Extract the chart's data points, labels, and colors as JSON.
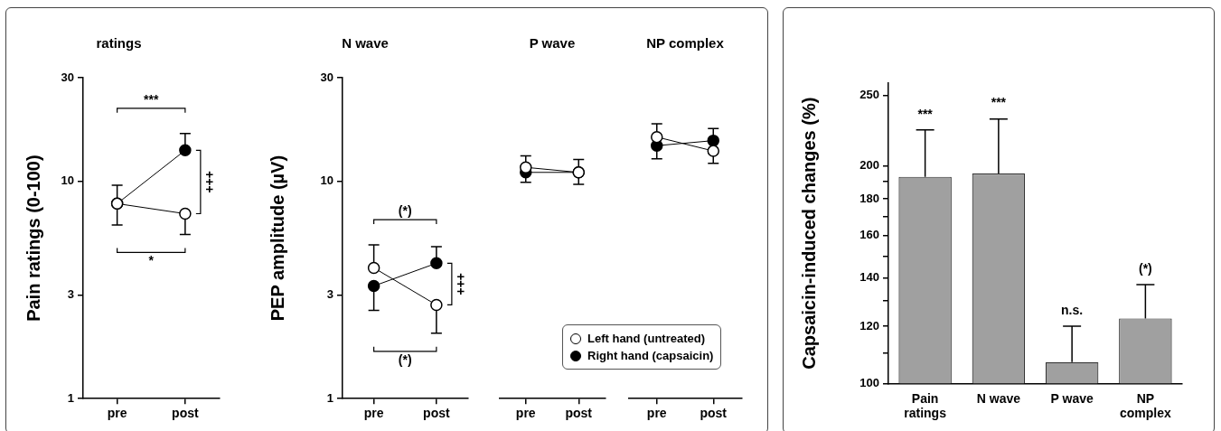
{
  "chart_data": [
    {
      "type": "line",
      "title": "ratings",
      "ylabel": "Pain ratings (0-100)",
      "categories": [
        "pre",
        "post"
      ],
      "log": true,
      "ylim": [
        1,
        30
      ],
      "yticks": [
        1,
        3,
        10,
        30
      ],
      "marker": "circle",
      "series": [
        {
          "name": "Left hand (untreated)",
          "color": "#ffffff",
          "values": [
            7.9,
            7.1
          ],
          "errors": [
            [
              6.3,
              7.9
            ],
            [
              5.7,
              7.1
            ]
          ]
        },
        {
          "name": "Right hand (capsaicin)",
          "color": "#000000",
          "values": [
            7.9,
            13.9
          ],
          "errors": [
            [
              7.9,
              9.6
            ],
            [
              13.9,
              16.6
            ]
          ]
        }
      ],
      "annotations": [
        "***",
        "*",
        "+++"
      ],
      "legend": "right"
    },
    {
      "type": "line",
      "title": "N wave",
      "ylabel": "PEP amplitude (µV)",
      "categories": [
        "pre",
        "post"
      ],
      "log": true,
      "ylim": [
        1,
        30
      ],
      "yticks": [
        1,
        3,
        10,
        30
      ],
      "marker": "circle",
      "series": [
        {
          "color": "#ffffff",
          "values": [
            4.0,
            2.7
          ],
          "errors": [
            [
              4.0,
              5.1
            ],
            [
              2.0,
              2.7
            ]
          ]
        },
        {
          "color": "#000000",
          "values": [
            3.3,
            4.2
          ],
          "errors": [
            [
              2.55,
              3.3
            ],
            [
              4.2,
              5.0
            ]
          ]
        }
      ],
      "annotations": [
        "(*)",
        "(*)",
        "+++"
      ]
    },
    {
      "type": "line",
      "title": "P wave",
      "categories": [
        "pre",
        "post"
      ],
      "log": true,
      "ylim": [
        1,
        30
      ],
      "yticks": [
        1,
        3,
        10,
        30
      ],
      "marker": "circle",
      "tick_labels": "x",
      "series": [
        {
          "color": "#ffffff",
          "values": [
            11.6,
            11.0
          ],
          "errors": [
            [
              11.6,
              13.1
            ],
            [
              11.0,
              12.6
            ]
          ]
        },
        {
          "color": "#000000",
          "values": [
            11.0,
            11.0
          ],
          "errors": [
            [
              9.9,
              11.0
            ],
            [
              9.7,
              11.0
            ]
          ]
        }
      ]
    },
    {
      "type": "line",
      "title": "NP complex",
      "categories": [
        "pre",
        "post"
      ],
      "log": true,
      "ylim": [
        1,
        30
      ],
      "yticks": [
        1,
        3,
        10,
        30
      ],
      "marker": "circle",
      "tick_labels": "x",
      "series": [
        {
          "color": "#ffffff",
          "values": [
            16.0,
            13.8
          ],
          "errors": [
            [
              16.0,
              18.4
            ],
            [
              12.1,
              13.8
            ]
          ]
        },
        {
          "color": "#000000",
          "values": [
            14.6,
            15.4
          ],
          "errors": [
            [
              12.7,
              14.6
            ],
            [
              15.4,
              17.5
            ]
          ]
        }
      ]
    },
    {
      "type": "bar",
      "ylabel": "Capsaicin-induced changes (%)",
      "categories": [
        "Pain\nratings",
        "N wave",
        "P wave",
        "NP\ncomplex"
      ],
      "values": [
        193,
        195,
        107,
        123
      ],
      "color": "#a0a0a0",
      "errors": [
        [
          193,
          224
        ],
        [
          195,
          232
        ],
        [
          107,
          120
        ],
        [
          123,
          137
        ]
      ],
      "log": true,
      "ylim": [
        100,
        260
      ],
      "yticks": [
        100,
        {
          "value": 110,
          "label": null
        },
        120,
        {
          "value": 130,
          "label": null
        },
        140,
        {
          "value": 150,
          "label": null
        },
        160,
        {
          "value": 170,
          "label": null
        },
        180,
        {
          "value": 190,
          "label": null
        },
        200,
        250
      ],
      "annotations": [
        {
          "text": "***",
          "x": "Pain\nratings",
          "y": 224
        },
        {
          "text": "***",
          "x": "N wave",
          "y": 232
        },
        {
          "text": "n.s.",
          "x": "P wave",
          "y": 120
        },
        {
          "text": "(*)",
          "x": "NP\ncomplex",
          "y": 137
        }
      ]
    }
  ]
}
